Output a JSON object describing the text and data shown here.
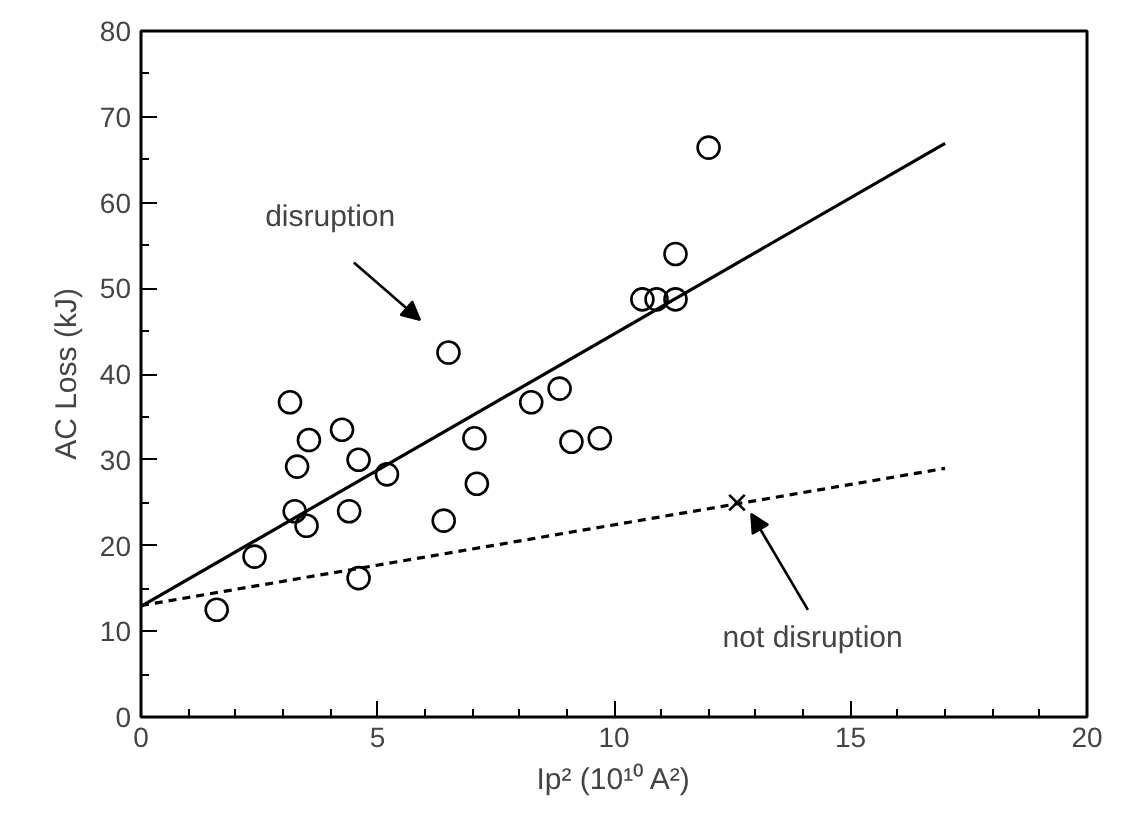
{
  "chart_data": {
    "type": "scatter",
    "xlabel": "Ip² (10¹⁰ A²)",
    "ylabel": "AC Loss (kJ)",
    "xlim": [
      0,
      20
    ],
    "ylim": [
      0,
      80
    ],
    "xticks": [
      0,
      5,
      10,
      15,
      20
    ],
    "yticks": [
      0,
      10,
      20,
      30,
      40,
      50,
      60,
      70,
      80
    ],
    "grid": false,
    "series": [
      {
        "marker": "circle",
        "color": "#000000",
        "x": [
          1.6,
          2.4,
          3.15,
          3.3,
          3.55,
          3.25,
          3.5,
          4.25,
          4.4,
          4.6,
          4.6,
          5.2,
          6.4,
          6.5,
          7.05,
          7.1,
          8.25,
          8.85,
          9.1,
          9.7,
          10.6,
          10.9,
          11.3,
          11.3,
          12.0
        ],
        "values": [
          12.5,
          18.7,
          36.7,
          29.2,
          32.3,
          24.0,
          22.3,
          33.5,
          24.0,
          30.0,
          16.2,
          28.3,
          22.9,
          42.5,
          32.5,
          27.2,
          36.7,
          38.3,
          32.1,
          32.5,
          48.7,
          48.7,
          48.7,
          54.0,
          66.4
        ]
      },
      {
        "marker": "cross",
        "color": "#000000",
        "x": [
          12.6
        ],
        "values": [
          25
        ]
      },
      {
        "type": "line",
        "marker": "none",
        "line_style": "solid",
        "color": "#000000",
        "x": [
          0,
          17
        ],
        "values": [
          12.9,
          66.9
        ]
      },
      {
        "type": "line",
        "marker": "none",
        "line_style": "dashed",
        "color": "#000000",
        "x": [
          0,
          17
        ],
        "values": [
          13.0,
          29.0
        ]
      }
    ],
    "annotations": [
      "disruption",
      {
        "text": "not disruption",
        "x": 12.6,
        "y": 25
      }
    ]
  }
}
